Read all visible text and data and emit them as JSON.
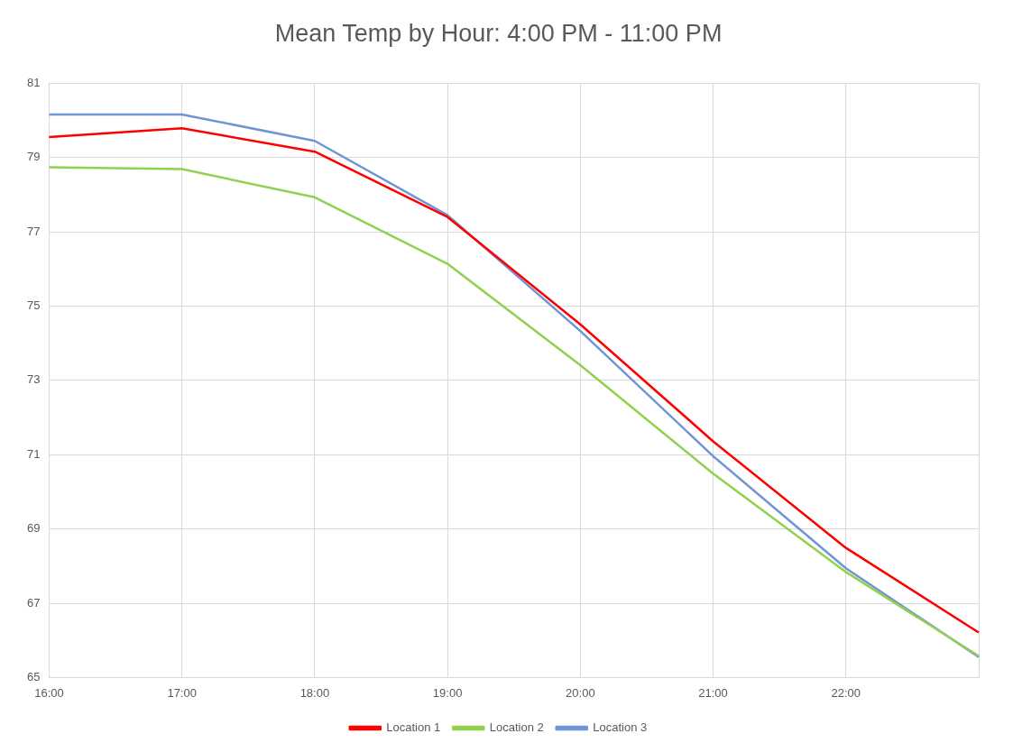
{
  "chart_data": {
    "type": "line",
    "title": "Mean Temp by Hour: 4:00 PM - 11:00 PM",
    "categories": [
      "16:00",
      "17:00",
      "18:00",
      "19:00",
      "20:00",
      "21:00",
      "22:00",
      null
    ],
    "series": [
      {
        "name": "Location 1",
        "color": "#ff0000",
        "values": [
          79.55,
          79.79,
          79.16,
          77.4,
          74.51,
          71.36,
          68.49,
          66.21
        ]
      },
      {
        "name": "Location 2",
        "color": "#92d050",
        "values": [
          78.74,
          78.69,
          77.93,
          76.14,
          73.41,
          70.49,
          67.84,
          65.58
        ]
      },
      {
        "name": "Location 3",
        "color": "#7094d4",
        "values": [
          80.16,
          80.16,
          79.45,
          77.45,
          74.33,
          70.96,
          67.94,
          65.55
        ]
      }
    ],
    "ylim": [
      65,
      81
    ],
    "yticks": [
      65,
      67,
      69,
      71,
      73,
      75,
      77,
      79,
      81
    ],
    "grid": true,
    "legend": "bottom",
    "marker": "none",
    "line_style": "solid"
  }
}
